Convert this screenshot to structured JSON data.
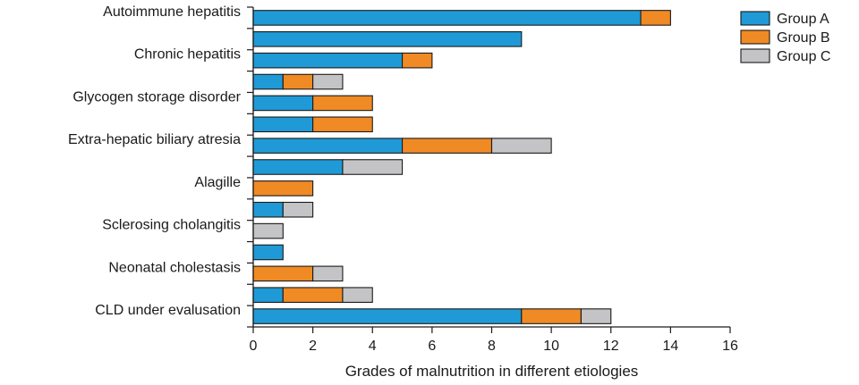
{
  "chart_data": {
    "type": "bar",
    "orientation": "horizontal",
    "stacked": true,
    "categories": [
      "Autoimmune hepatitis",
      "",
      "Chronic hepatitis",
      "",
      "Glycogen storage disorder",
      "",
      "Extra-hepatic biliary atresia",
      "",
      "Alagille",
      "",
      "Sclerosing cholangitis",
      "",
      "Neonatal cholestasis",
      "",
      "CLD under evalusation"
    ],
    "series": [
      {
        "name": "Group A",
        "color": "#1f9ad6",
        "values": [
          13,
          9,
          5,
          1,
          2,
          2,
          5,
          3,
          0,
          1,
          0,
          1,
          0,
          1,
          9
        ]
      },
      {
        "name": "Group B",
        "color": "#f08a24",
        "values": [
          1,
          0,
          1,
          1,
          2,
          2,
          3,
          0,
          2,
          0,
          0,
          0,
          2,
          2,
          2
        ]
      },
      {
        "name": "Group C",
        "color": "#c4c4c6",
        "values": [
          0,
          0,
          0,
          1,
          0,
          0,
          2,
          2,
          0,
          1,
          1,
          0,
          1,
          1,
          1
        ]
      }
    ],
    "xlabel": "Grades of malnutrition in different etiologies",
    "ylabel": "",
    "xlim": [
      0,
      16
    ],
    "xticks": [
      "0",
      "2",
      "4",
      "6",
      "8",
      "10",
      "12",
      "14",
      "16"
    ],
    "grid": false,
    "legend": "top-right"
  }
}
